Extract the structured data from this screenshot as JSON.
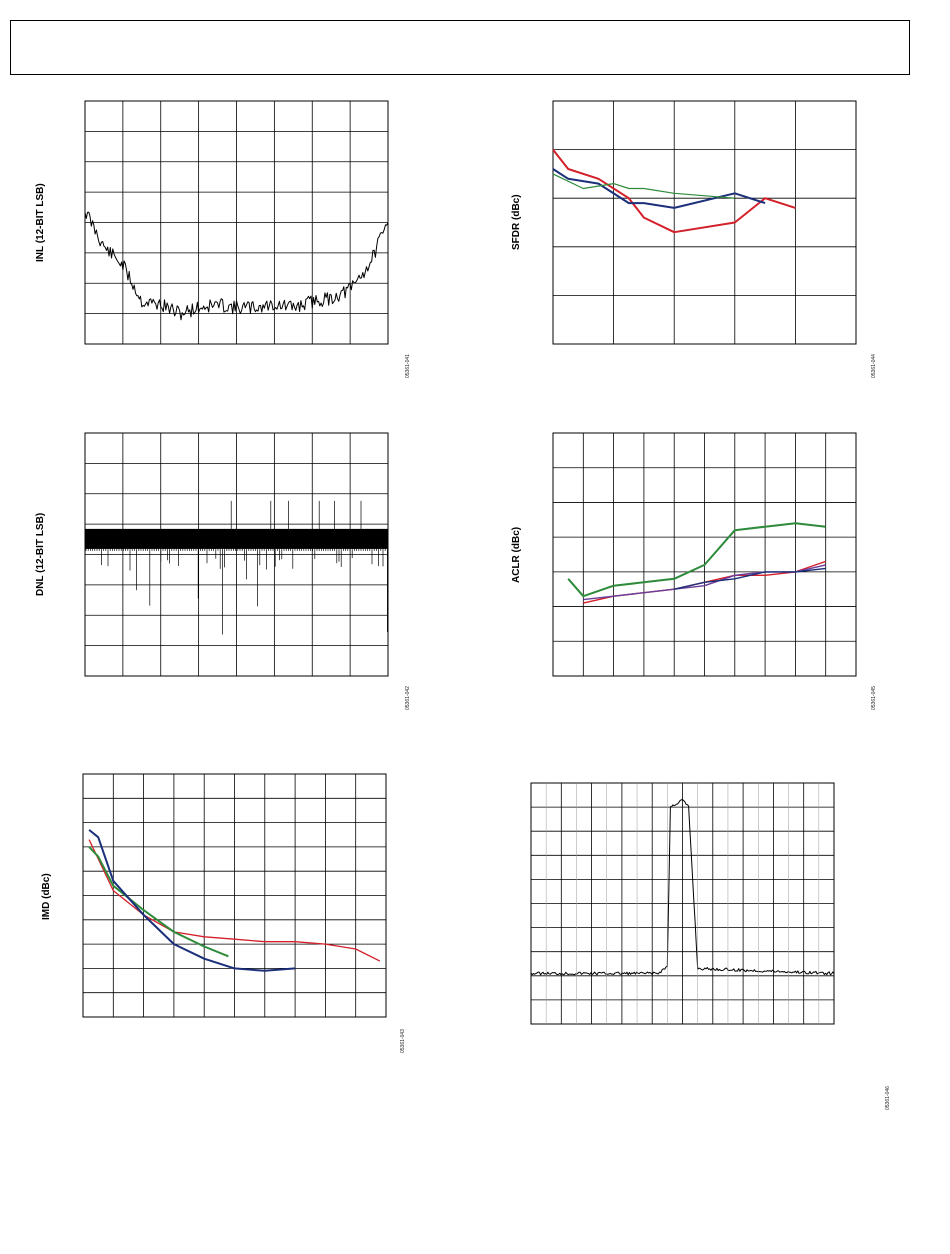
{
  "charts": [
    {
      "id": "inl",
      "ylabel": "INL (12-BIT LSB)",
      "code": "05361-041"
    },
    {
      "id": "sfdr",
      "ylabel": "SFDR (dBc)",
      "code": "05361-044"
    },
    {
      "id": "dnl",
      "ylabel": "DNL (12-BIT LSB)",
      "code": "05361-042"
    },
    {
      "id": "aclr",
      "ylabel": "ACLR (dBc)",
      "code": "05361-045"
    },
    {
      "id": "imd",
      "ylabel": "IMD (dBc)",
      "code": "05361-043"
    },
    {
      "id": "spectrum",
      "ylabel": "",
      "code": "05361-046"
    }
  ],
  "colors": {
    "red": "#d4202a",
    "blue": "#1b2f7a",
    "green": "#2e8b3a",
    "purple": "#6a3d9a",
    "black": "#000000"
  },
  "chart_data": [
    {
      "type": "line",
      "id": "inl",
      "ylabel": "INL (12-BIT LSB)",
      "grid": true,
      "x_divisions": 8,
      "y_divisions": 8,
      "ylim": [
        0,
        8
      ],
      "series": [
        {
          "x": [
            0,
            0.5,
            1,
            1.5,
            2,
            2.5,
            3,
            3.5,
            4,
            4.5,
            5,
            5.5,
            6,
            6.5,
            7,
            7.5,
            8
          ],
          "values": [
            4.4,
            3.2,
            2.6,
            1.4,
            1.3,
            1.0,
            1.2,
            1.3,
            1.2,
            1.2,
            1.3,
            1.2,
            1.4,
            1.5,
            1.8,
            2.6,
            4.0
          ]
        }
      ]
    },
    {
      "type": "line",
      "id": "sfdr",
      "ylabel": "SFDR (dBc)",
      "grid": true,
      "x_divisions": 5,
      "y_divisions": 5,
      "ylim": [
        0,
        5
      ],
      "series": [
        {
          "color": "red",
          "x": [
            0,
            0.25,
            0.75,
            1.25,
            1.5,
            2,
            3,
            3.5,
            4
          ],
          "values": [
            4.0,
            3.6,
            3.4,
            3.0,
            2.6,
            2.3,
            2.5,
            3.0,
            2.8
          ]
        },
        {
          "color": "blue",
          "x": [
            0,
            0.25,
            0.75,
            1.25,
            1.5,
            2,
            3,
            3.5
          ],
          "values": [
            3.6,
            3.4,
            3.3,
            2.9,
            2.9,
            2.8,
            3.1,
            2.9
          ]
        },
        {
          "color": "green",
          "x": [
            0,
            0.5,
            1,
            1.25,
            1.5,
            2,
            3
          ],
          "values": [
            3.5,
            3.2,
            3.3,
            3.2,
            3.2,
            3.1,
            3.0
          ]
        }
      ]
    },
    {
      "type": "line",
      "id": "dnl",
      "ylabel": "DNL (12-BIT LSB)",
      "grid": true,
      "x_divisions": 8,
      "y_divisions": 8,
      "ylim": [
        0,
        8
      ],
      "series": [
        {
          "values": [
            4.25
          ]
        }
      ]
    },
    {
      "type": "line",
      "id": "aclr",
      "ylabel": "ACLR (dBc)",
      "grid": true,
      "x_divisions": 10,
      "y_divisions": 7,
      "ylim": [
        0,
        7
      ],
      "series": [
        {
          "color": "green",
          "x": [
            0.5,
            1,
            2,
            3,
            4,
            5,
            6,
            7,
            8,
            9
          ],
          "values": [
            2.8,
            2.3,
            2.6,
            2.7,
            2.8,
            3.2,
            4.2,
            4.3,
            4.4,
            4.3
          ]
        },
        {
          "color": "red",
          "x": [
            1,
            2,
            3,
            4,
            5,
            6,
            7,
            8,
            9
          ],
          "values": [
            2.1,
            2.3,
            2.4,
            2.5,
            2.7,
            2.9,
            2.9,
            3.0,
            3.3
          ]
        },
        {
          "color": "purple",
          "x": [
            1,
            2,
            3,
            4,
            5,
            6,
            7,
            8,
            9
          ],
          "values": [
            2.2,
            2.3,
            2.4,
            2.5,
            2.6,
            2.9,
            3.0,
            3.0,
            3.2
          ]
        },
        {
          "color": "blue",
          "x": [
            4,
            5,
            6,
            7,
            8,
            9
          ],
          "values": [
            2.5,
            2.7,
            2.8,
            3.0,
            3.0,
            3.1
          ]
        }
      ]
    },
    {
      "type": "line",
      "id": "imd",
      "ylabel": "IMD (dBc)",
      "grid": true,
      "x_divisions": 10,
      "y_divisions": 10,
      "ylim": [
        0,
        10
      ],
      "series": [
        {
          "color": "red",
          "x": [
            0.2,
            1,
            2,
            3,
            4,
            5,
            6,
            7,
            8,
            9,
            9.8
          ],
          "values": [
            7.3,
            5.2,
            4.2,
            3.5,
            3.3,
            3.2,
            3.1,
            3.1,
            3.0,
            2.8,
            2.3
          ]
        },
        {
          "color": "green",
          "x": [
            0.2,
            0.5,
            1,
            2,
            3,
            4,
            4.8
          ],
          "values": [
            7.0,
            6.6,
            5.4,
            4.4,
            3.5,
            2.9,
            2.5
          ]
        },
        {
          "color": "blue",
          "x": [
            0.2,
            0.5,
            1,
            2,
            3,
            4,
            5,
            6,
            7
          ],
          "values": [
            7.7,
            7.4,
            5.6,
            4.2,
            3.0,
            2.4,
            2.0,
            1.9,
            2.0
          ]
        }
      ]
    },
    {
      "type": "line",
      "id": "spectrum",
      "ylabel": "",
      "grid": true,
      "x_divisions": 10,
      "y_divisions": 10,
      "ylim": [
        0,
        10
      ],
      "series": [
        {
          "x": [
            0,
            4.2,
            4.5,
            4.6,
            5.0,
            5.2,
            5.5,
            10
          ],
          "values": [
            2.1,
            2.1,
            2.4,
            9.0,
            9.3,
            9.0,
            2.3,
            2.1
          ]
        }
      ]
    }
  ]
}
